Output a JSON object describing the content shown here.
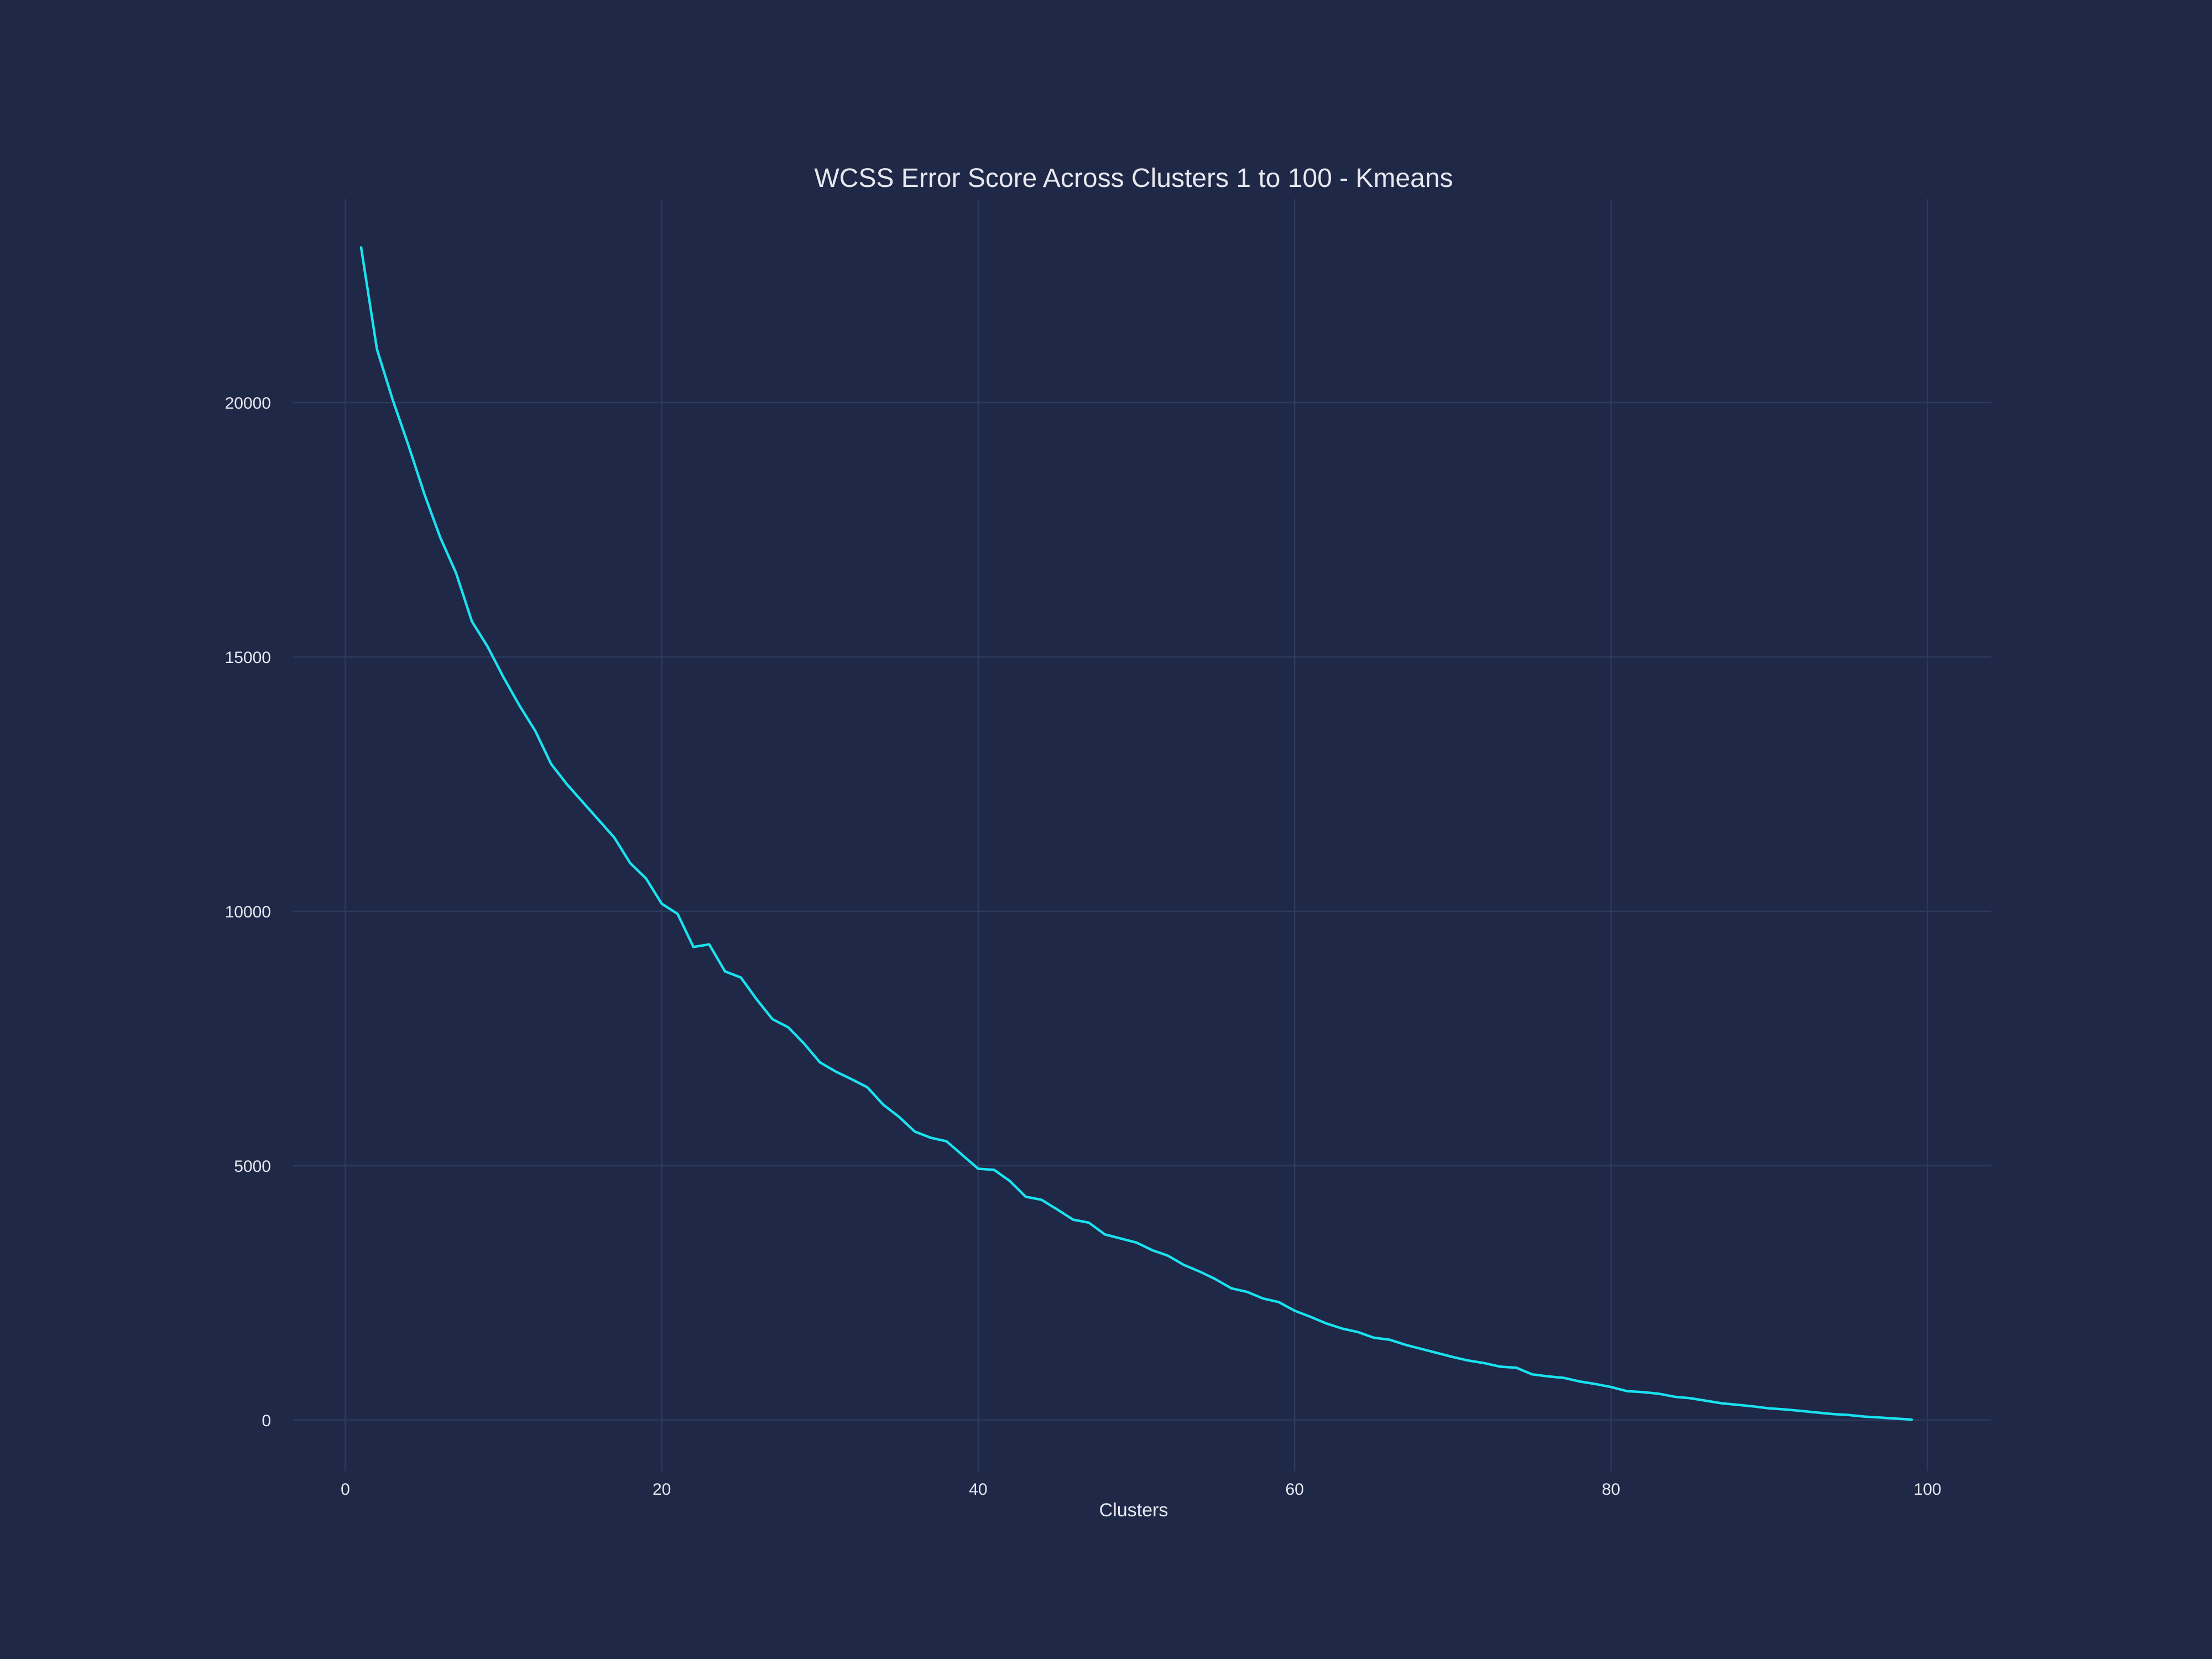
{
  "chart_data": {
    "type": "line",
    "title": "WCSS Error Score Across Clusters 1 to 100 - Kmeans",
    "xlabel": "Clusters",
    "ylabel": "",
    "xlim": [
      -3.3,
      104
    ],
    "ylim": [
      -1000,
      24000
    ],
    "x_ticks": [
      0,
      20,
      40,
      60,
      80,
      100
    ],
    "y_ticks": [
      0,
      5000,
      10000,
      15000,
      20000
    ],
    "grid": true,
    "legend": "none",
    "colors": {
      "background": "#1f2847",
      "grid": "#2c3a5e",
      "line": "#19e3f0",
      "text": "#e6e8ee"
    },
    "series": [
      {
        "x": [
          1,
          2,
          3,
          4,
          5,
          6,
          7,
          8,
          9,
          10,
          11,
          12,
          13,
          14,
          15,
          16,
          17,
          18,
          19,
          20,
          21,
          22,
          23,
          24,
          25,
          26,
          27,
          28,
          29,
          30,
          31,
          32,
          33,
          34,
          35,
          36,
          37,
          38,
          39,
          40,
          41,
          42,
          43,
          44,
          45,
          46,
          47,
          48,
          49,
          50,
          51,
          52,
          53,
          54,
          55,
          56,
          57,
          58,
          59,
          60,
          61,
          62,
          63,
          64,
          65,
          66,
          67,
          68,
          69,
          70,
          71,
          72,
          73,
          74,
          75,
          76,
          77,
          78,
          79,
          80,
          81,
          82,
          83,
          84,
          85,
          86,
          87,
          88,
          89,
          90,
          91,
          92,
          93,
          94,
          95,
          96,
          97,
          98,
          99
        ],
        "values": [
          23050,
          21050,
          20050,
          19150,
          18200,
          17350,
          16650,
          15700,
          15200,
          14600,
          14050,
          13550,
          12900,
          12500,
          12150,
          11800,
          11450,
          10950,
          10650,
          10150,
          9950,
          9300,
          9350,
          8820,
          8700,
          8270,
          7880,
          7720,
          7400,
          7030,
          6850,
          6700,
          6540,
          6200,
          5960,
          5670,
          5550,
          5480,
          5210,
          4940,
          4920,
          4700,
          4390,
          4330,
          4140,
          3940,
          3880,
          3650,
          3570,
          3490,
          3340,
          3230,
          3050,
          2920,
          2770,
          2590,
          2520,
          2390,
          2320,
          2150,
          2030,
          1900,
          1800,
          1730,
          1620,
          1580,
          1480,
          1400,
          1320,
          1240,
          1170,
          1120,
          1050,
          1030,
          900,
          860,
          830,
          760,
          710,
          650,
          570,
          550,
          520,
          460,
          430,
          380,
          330,
          300,
          270,
          230,
          210,
          180,
          150,
          120,
          100,
          70,
          50,
          30,
          10
        ]
      }
    ]
  }
}
